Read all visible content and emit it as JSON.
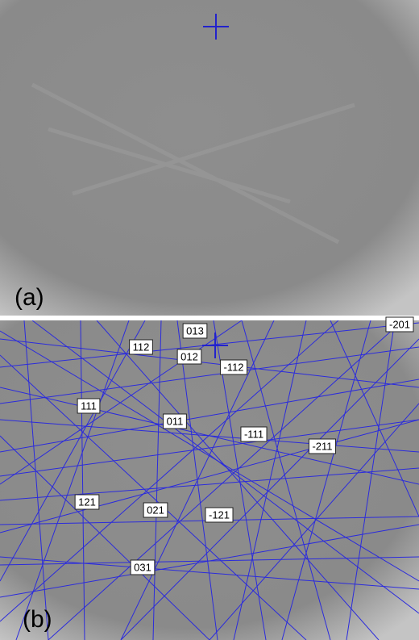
{
  "panels": [
    {
      "label": "(a)"
    },
    {
      "label": "(b)",
      "zone_labels": [
        "013",
        "112",
        "012",
        "-112",
        "111",
        "011",
        "-111",
        "-211",
        "121",
        "021",
        "-121",
        "031",
        "-201"
      ]
    }
  ]
}
